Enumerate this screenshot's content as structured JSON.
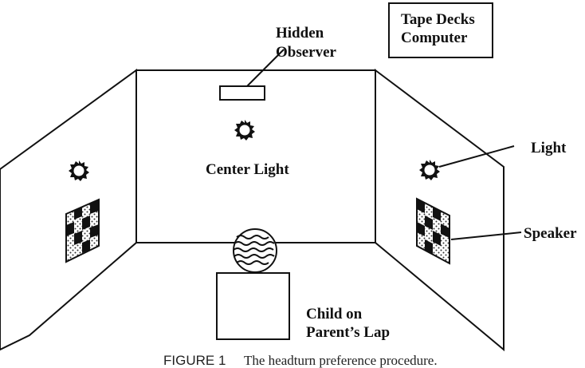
{
  "equipment_box": {
    "line1": "Tape Decks",
    "line2": "Computer"
  },
  "labels": {
    "hidden_observer_line1": "Hidden",
    "hidden_observer_line2": "Observer",
    "center_light": "Center Light",
    "light": "Light",
    "speaker": "Speaker",
    "child_line1": "Child on",
    "child_line2": "Parent’s Lap"
  },
  "caption": {
    "figure_label": "FIGURE 1",
    "text": "The headturn preference procedure."
  }
}
